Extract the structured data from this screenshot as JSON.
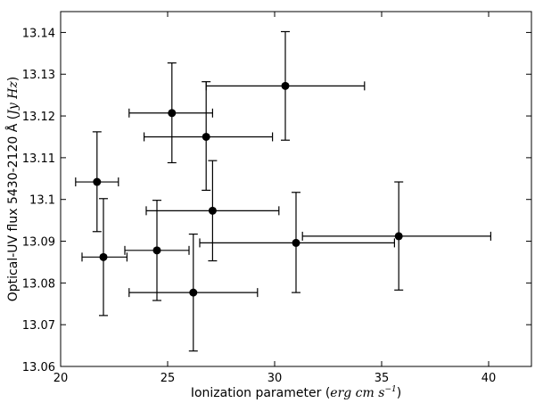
{
  "chart_data": {
    "type": "scatter",
    "title": "",
    "xlabel_text": "Ionization parameter (",
    "xlabel_unit": "erg cm s",
    "xlabel_exp": "−1",
    "xlabel_close": ")",
    "ylabel_text": "Optical-UV flux 5430-2120 Å (",
    "ylabel_unit": "Jy Hz",
    "ylabel_close": ")",
    "xlim": [
      20,
      42
    ],
    "ylim": [
      13.06,
      13.145
    ],
    "xticks": [
      20,
      25,
      30,
      35,
      40
    ],
    "xtick_labels": [
      "20",
      "25",
      "30",
      "35",
      "40"
    ],
    "yticks": [
      13.06,
      13.07,
      13.08,
      13.09,
      13.1,
      13.11,
      13.12,
      13.13,
      13.14
    ],
    "ytick_labels": [
      "13.06",
      "13.07",
      "13.08",
      "13.09",
      "13.1",
      "13.11",
      "13.12",
      "13.13",
      "13.14"
    ],
    "grid": false,
    "legend": "none",
    "color": "#000000",
    "points": [
      {
        "x": 21.7,
        "y": 13.1042,
        "xerr": [
          20.7,
          22.7
        ],
        "yerr": [
          13.0923,
          13.1162
        ]
      },
      {
        "x": 22.0,
        "y": 13.0862,
        "xerr": [
          21.0,
          23.1
        ],
        "yerr": [
          13.0722,
          13.1002
        ]
      },
      {
        "x": 24.5,
        "y": 13.0878,
        "xerr": [
          23.0,
          26.0
        ],
        "yerr": [
          13.0758,
          13.0998
        ]
      },
      {
        "x": 25.2,
        "y": 13.1207,
        "xerr": [
          23.2,
          27.1
        ],
        "yerr": [
          13.1088,
          13.1327
        ]
      },
      {
        "x": 26.2,
        "y": 13.0777,
        "xerr": [
          23.2,
          29.2
        ],
        "yerr": [
          13.0637,
          13.0917
        ]
      },
      {
        "x": 26.8,
        "y": 13.115,
        "xerr": [
          23.9,
          29.9
        ],
        "yerr": [
          13.1022,
          13.1282
        ]
      },
      {
        "x": 27.1,
        "y": 13.0973,
        "xerr": [
          24.0,
          30.2
        ],
        "yerr": [
          13.0853,
          13.1093
        ]
      },
      {
        "x": 30.5,
        "y": 13.1272,
        "xerr": [
          26.8,
          34.2
        ],
        "yerr": [
          13.1142,
          13.1402
        ]
      },
      {
        "x": 31.0,
        "y": 13.0896,
        "xerr": [
          26.5,
          35.6
        ],
        "yerr": [
          13.0777,
          13.1017
        ]
      },
      {
        "x": 35.8,
        "y": 13.0912,
        "xerr": [
          31.3,
          40.1
        ],
        "yerr": [
          13.0783,
          13.1042
        ]
      }
    ]
  }
}
